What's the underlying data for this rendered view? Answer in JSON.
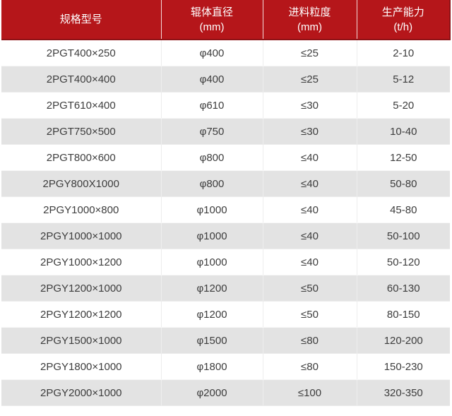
{
  "chart_data": {
    "type": "table",
    "columns": [
      {
        "label": "规格型号",
        "unit": ""
      },
      {
        "label": "辊体直径",
        "unit": "(mm)"
      },
      {
        "label": "进料粒度",
        "unit": "(mm)"
      },
      {
        "label": "生产能力",
        "unit": "(t/h)"
      }
    ],
    "rows": [
      [
        "2PGT400×250",
        "φ400",
        "≤25",
        "2-10"
      ],
      [
        "2PGT400×400",
        "φ400",
        "≤25",
        "5-12"
      ],
      [
        "2PGT610×400",
        "φ610",
        "≤30",
        "5-20"
      ],
      [
        "2PGT750×500",
        "φ750",
        "≤30",
        "10-40"
      ],
      [
        "2PGT800×600",
        "φ800",
        "≤40",
        "12-50"
      ],
      [
        "2PGY800X1000",
        "φ800",
        "≤40",
        "50-80"
      ],
      [
        "2PGY1000×800",
        "φ1000",
        "≤40",
        "45-80"
      ],
      [
        "2PGY1000×1000",
        "φ1000",
        "≤40",
        "50-100"
      ],
      [
        "2PGY1000×1200",
        "φ1000",
        "≤40",
        "50-120"
      ],
      [
        "2PGY1200×1000",
        "φ1200",
        "≤50",
        "60-130"
      ],
      [
        "2PGY1200×1200",
        "φ1200",
        "≤50",
        "80-150"
      ],
      [
        "2PGY1500×1000",
        "φ1500",
        "≤80",
        "120-200"
      ],
      [
        "2PGY1800×1000",
        "φ1800",
        "≤80",
        "150-230"
      ],
      [
        "2PGY2000×1000",
        "φ2000",
        "≤100",
        "320-350"
      ]
    ],
    "layout_hints": {
      "header_lines": 2,
      "alternating_rows": true,
      "grid": "light vertical separators, no outer border"
    }
  },
  "colors": {
    "header_bg": "#b5161a",
    "header_border_dark": "#8e1216",
    "header_divider": "#ffffff",
    "header_text": "#ffffff",
    "row_bg": "#ffffff",
    "row_alt_bg": "#e3e3e3",
    "body_text": "#3d3d3d"
  }
}
